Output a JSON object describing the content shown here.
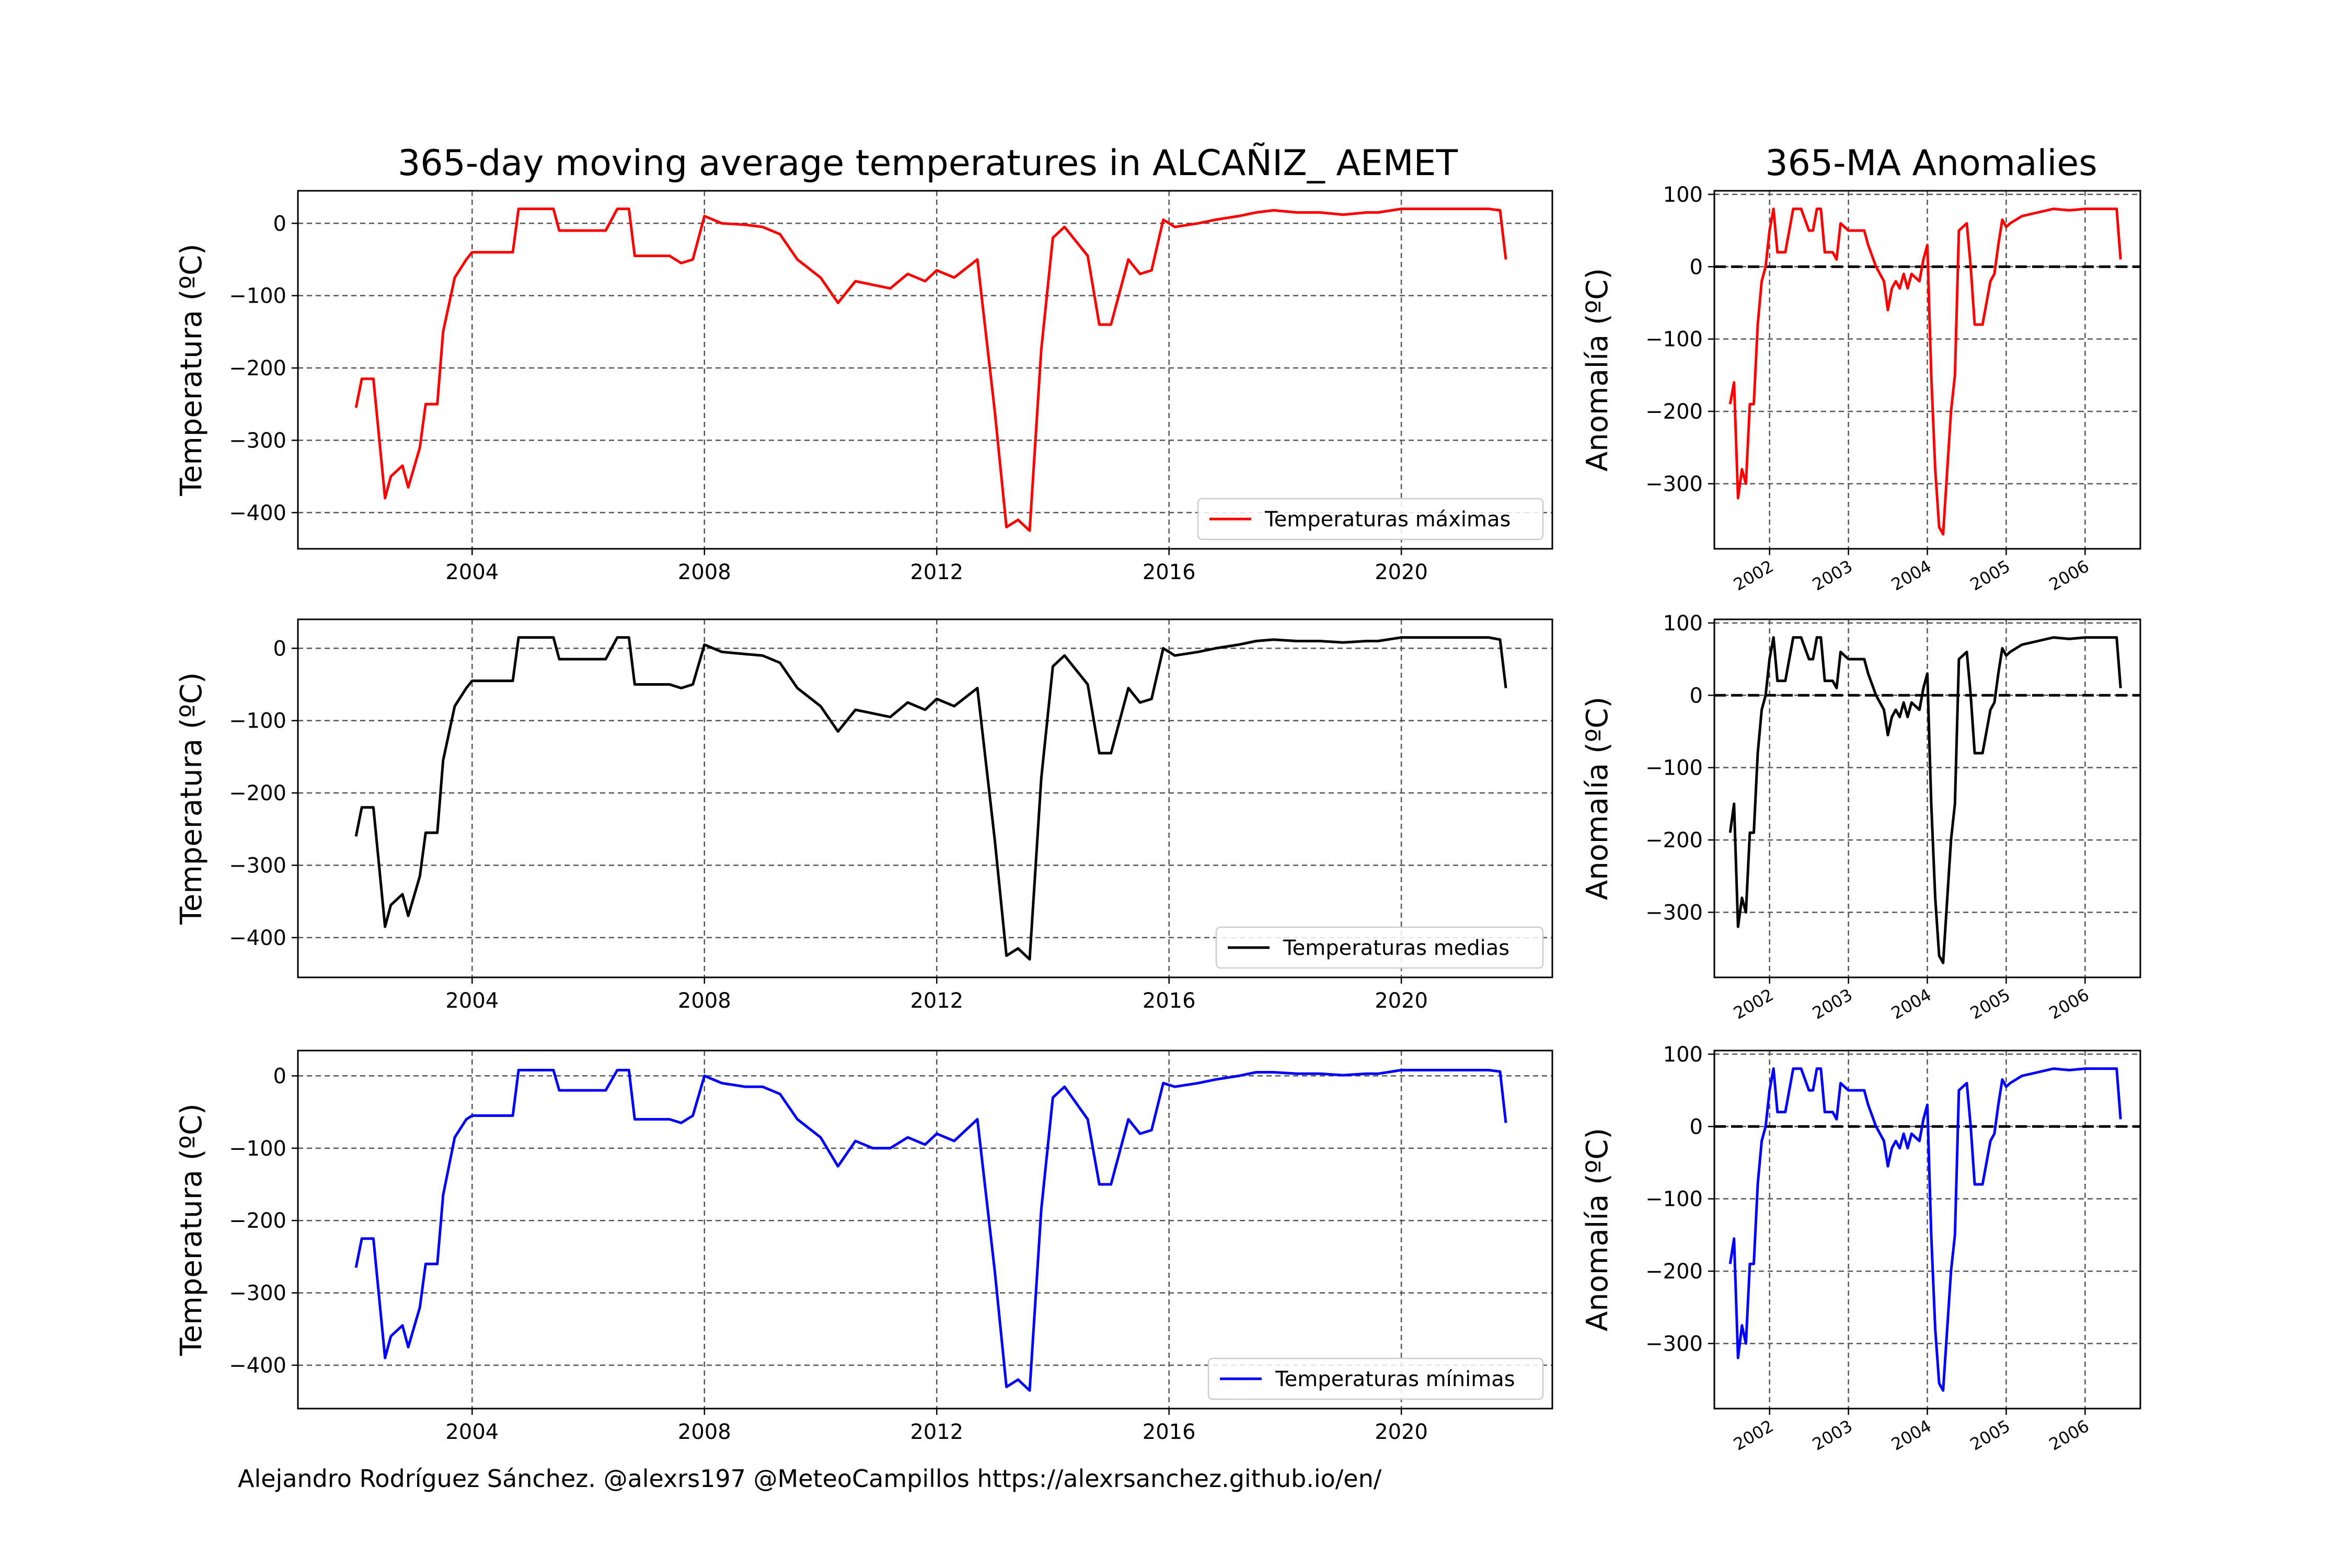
{
  "figure": {
    "title": "365-day moving average temperatures in ALCAÑIZ_ AEMET",
    "anomaly_title": "365-MA Anomalies",
    "footer": "Alejandro Rodríguez Sánchez. @alexrs197 @MeteoCampillos   https://alexrsanchez.github.io/en/"
  },
  "colors": {
    "max": "#ff0000",
    "mean": "#000000",
    "min": "#0000ff",
    "grid": "#555555"
  },
  "chart_data": [
    {
      "type": "line",
      "ylabel": "Temperatura (ºC)",
      "xlim": [
        2001.0,
        2022.6
      ],
      "ylim": [
        -450,
        45
      ],
      "xticks": [
        "2004",
        "2008",
        "2012",
        "2016",
        "2020"
      ],
      "yticks": [
        "0",
        "−100",
        "−200",
        "−300",
        "−400"
      ],
      "legend": "lower right",
      "grid": true,
      "series": [
        {
          "name": "Temperaturas máximas",
          "color": "#ff0000",
          "x": [
            2002.0,
            2002.1,
            2002.3,
            2002.5,
            2002.6,
            2002.8,
            2002.9,
            2003.1,
            2003.2,
            2003.4,
            2003.5,
            2003.7,
            2003.9,
            2004.0,
            2004.7,
            2004.8,
            2005.4,
            2005.5,
            2006.3,
            2006.5,
            2006.7,
            2006.8,
            2007.4,
            2007.6,
            2007.8,
            2008.0,
            2008.3,
            2008.7,
            2009.0,
            2009.3,
            2009.6,
            2010.0,
            2010.3,
            2010.6,
            2010.9,
            2011.2,
            2011.5,
            2011.8,
            2012.0,
            2012.3,
            2012.7,
            2013.0,
            2013.2,
            2013.4,
            2013.6,
            2013.8,
            2014.0,
            2014.2,
            2014.6,
            2014.8,
            2015.0,
            2015.3,
            2015.5,
            2015.7,
            2015.9,
            2016.1,
            2016.5,
            2016.8,
            2017.2,
            2017.5,
            2017.8,
            2018.2,
            2018.6,
            2019.0,
            2019.4,
            2019.6,
            2020.0,
            2020.5,
            2020.7,
            2021.0,
            2021.5,
            2021.7,
            2021.8
          ],
          "y": [
            -255,
            -215,
            -215,
            -380,
            -350,
            -335,
            -365,
            -310,
            -250,
            -250,
            -150,
            -75,
            -50,
            -40,
            -40,
            20,
            20,
            -10,
            -10,
            20,
            20,
            -45,
            -45,
            -55,
            -50,
            10,
            0,
            -2,
            -5,
            -15,
            -50,
            -75,
            -110,
            -80,
            -85,
            -90,
            -70,
            -80,
            -65,
            -75,
            -50,
            -260,
            -420,
            -410,
            -425,
            -175,
            -20,
            -5,
            -45,
            -140,
            -140,
            -50,
            -70,
            -65,
            5,
            -5,
            0,
            5,
            10,
            15,
            18,
            15,
            15,
            12,
            15,
            15,
            20,
            20,
            20,
            20,
            20,
            18,
            -50
          ]
        }
      ]
    },
    {
      "type": "line",
      "ylabel": "Temperatura (ºC)",
      "xlim": [
        2001.0,
        2022.6
      ],
      "ylim": [
        -455,
        40
      ],
      "xticks": [
        "2004",
        "2008",
        "2012",
        "2016",
        "2020"
      ],
      "yticks": [
        "0",
        "−100",
        "−200",
        "−300",
        "−400"
      ],
      "legend": "lower right",
      "grid": true,
      "series": [
        {
          "name": "Temperaturas medias",
          "color": "#000000",
          "x": [
            2002.0,
            2002.1,
            2002.3,
            2002.5,
            2002.6,
            2002.8,
            2002.9,
            2003.1,
            2003.2,
            2003.4,
            2003.5,
            2003.7,
            2003.9,
            2004.0,
            2004.7,
            2004.8,
            2005.4,
            2005.5,
            2006.3,
            2006.5,
            2006.7,
            2006.8,
            2007.4,
            2007.6,
            2007.8,
            2008.0,
            2008.3,
            2008.7,
            2009.0,
            2009.3,
            2009.6,
            2010.0,
            2010.3,
            2010.6,
            2010.9,
            2011.2,
            2011.5,
            2011.8,
            2012.0,
            2012.3,
            2012.7,
            2013.0,
            2013.2,
            2013.4,
            2013.6,
            2013.8,
            2014.0,
            2014.2,
            2014.6,
            2014.8,
            2015.0,
            2015.3,
            2015.5,
            2015.7,
            2015.9,
            2016.1,
            2016.5,
            2016.8,
            2017.2,
            2017.5,
            2017.8,
            2018.2,
            2018.6,
            2019.0,
            2019.4,
            2019.6,
            2020.0,
            2020.5,
            2020.7,
            2021.0,
            2021.5,
            2021.7,
            2021.8
          ],
          "y": [
            -260,
            -220,
            -220,
            -385,
            -355,
            -340,
            -370,
            -315,
            -255,
            -255,
            -155,
            -80,
            -55,
            -45,
            -45,
            15,
            15,
            -15,
            -15,
            15,
            15,
            -50,
            -50,
            -55,
            -50,
            5,
            -5,
            -8,
            -10,
            -20,
            -55,
            -80,
            -115,
            -85,
            -90,
            -95,
            -75,
            -85,
            -70,
            -80,
            -55,
            -265,
            -425,
            -415,
            -430,
            -180,
            -25,
            -10,
            -50,
            -145,
            -145,
            -55,
            -75,
            -70,
            0,
            -10,
            -5,
            0,
            5,
            10,
            12,
            10,
            10,
            8,
            10,
            10,
            15,
            15,
            15,
            15,
            15,
            12,
            -55
          ]
        }
      ]
    },
    {
      "type": "line",
      "ylabel": "Temperatura (ºC)",
      "xlim": [
        2001.0,
        2022.6
      ],
      "ylim": [
        -460,
        35
      ],
      "xticks": [
        "2004",
        "2008",
        "2012",
        "2016",
        "2020"
      ],
      "yticks": [
        "0",
        "−100",
        "−200",
        "−300",
        "−400"
      ],
      "legend": "lower right",
      "grid": true,
      "series": [
        {
          "name": "Temperaturas mínimas",
          "color": "#0000ff",
          "x": [
            2002.0,
            2002.1,
            2002.3,
            2002.5,
            2002.6,
            2002.8,
            2002.9,
            2003.1,
            2003.2,
            2003.4,
            2003.5,
            2003.7,
            2003.9,
            2004.0,
            2004.7,
            2004.8,
            2005.4,
            2005.5,
            2006.3,
            2006.5,
            2006.7,
            2006.8,
            2007.4,
            2007.6,
            2007.8,
            2008.0,
            2008.3,
            2008.7,
            2009.0,
            2009.3,
            2009.6,
            2010.0,
            2010.3,
            2010.6,
            2010.9,
            2011.2,
            2011.5,
            2011.8,
            2012.0,
            2012.3,
            2012.7,
            2013.0,
            2013.2,
            2013.4,
            2013.6,
            2013.8,
            2014.0,
            2014.2,
            2014.6,
            2014.8,
            2015.0,
            2015.3,
            2015.5,
            2015.7,
            2015.9,
            2016.1,
            2016.5,
            2016.8,
            2017.2,
            2017.5,
            2017.8,
            2018.2,
            2018.6,
            2019.0,
            2019.4,
            2019.6,
            2020.0,
            2020.5,
            2020.7,
            2021.0,
            2021.5,
            2021.7,
            2021.8
          ],
          "y": [
            -265,
            -225,
            -225,
            -390,
            -360,
            -345,
            -375,
            -320,
            -260,
            -260,
            -165,
            -85,
            -60,
            -55,
            -55,
            8,
            8,
            -20,
            -20,
            8,
            8,
            -60,
            -60,
            -65,
            -55,
            0,
            -10,
            -15,
            -15,
            -25,
            -60,
            -85,
            -125,
            -90,
            -100,
            -100,
            -85,
            -95,
            -80,
            -90,
            -60,
            -270,
            -430,
            -420,
            -435,
            -185,
            -30,
            -15,
            -60,
            -150,
            -150,
            -60,
            -80,
            -75,
            -10,
            -15,
            -10,
            -5,
            0,
            5,
            5,
            3,
            3,
            1,
            3,
            3,
            8,
            8,
            8,
            8,
            8,
            6,
            -65
          ]
        }
      ]
    },
    {
      "type": "line",
      "title": "365-MA Anomalies",
      "ylabel": "Anomalía (ºC)",
      "xlim": [
        2001.3,
        2006.7
      ],
      "ylim": [
        -390,
        105
      ],
      "xticks": [
        "2002",
        "2003",
        "2004",
        "2005",
        "2006"
      ],
      "yticks": [
        "100",
        "0",
        "−100",
        "−200",
        "−300"
      ],
      "zero_line": true,
      "grid": true,
      "series": [
        {
          "name": "",
          "color": "#ff0000",
          "x": [
            2001.5,
            2001.55,
            2001.6,
            2001.65,
            2001.7,
            2001.75,
            2001.8,
            2001.85,
            2001.9,
            2001.95,
            2002.0,
            2002.05,
            2002.1,
            2002.2,
            2002.3,
            2002.4,
            2002.5,
            2002.55,
            2002.6,
            2002.65,
            2002.7,
            2002.8,
            2002.85,
            2002.9,
            2003.0,
            2003.05,
            2003.2,
            2003.25,
            2003.35,
            2003.45,
            2003.5,
            2003.55,
            2003.6,
            2003.65,
            2003.7,
            2003.75,
            2003.8,
            2003.9,
            2003.95,
            2004.0,
            2004.05,
            2004.1,
            2004.15,
            2004.2,
            2004.3,
            2004.35,
            2004.4,
            2004.5,
            2004.55,
            2004.6,
            2004.7,
            2004.75,
            2004.8,
            2004.85,
            2004.9,
            2004.95,
            2005.0,
            2005.05,
            2005.2,
            2005.4,
            2005.6,
            2005.8,
            2006.0,
            2006.2,
            2006.4,
            2006.45
          ],
          "y": [
            -190,
            -160,
            -320,
            -280,
            -300,
            -190,
            -190,
            -80,
            -20,
            0,
            50,
            80,
            20,
            20,
            80,
            80,
            50,
            50,
            80,
            80,
            20,
            20,
            10,
            60,
            50,
            50,
            50,
            30,
            0,
            -20,
            -60,
            -30,
            -20,
            -30,
            -10,
            -30,
            -10,
            -20,
            10,
            30,
            -150,
            -280,
            -360,
            -370,
            -200,
            -150,
            50,
            60,
            0,
            -80,
            -80,
            -50,
            -20,
            -10,
            30,
            65,
            55,
            60,
            70,
            75,
            80,
            78,
            80,
            80,
            80,
            10
          ]
        }
      ]
    },
    {
      "type": "line",
      "ylabel": "Anomalía (ºC)",
      "xlim": [
        2001.3,
        2006.7
      ],
      "ylim": [
        -390,
        105
      ],
      "xticks": [
        "2002",
        "2003",
        "2004",
        "2005",
        "2006"
      ],
      "yticks": [
        "100",
        "0",
        "−100",
        "−200",
        "−300"
      ],
      "zero_line": true,
      "grid": true,
      "series": [
        {
          "name": "",
          "color": "#000000",
          "x": [
            2001.5,
            2001.55,
            2001.6,
            2001.65,
            2001.7,
            2001.75,
            2001.8,
            2001.85,
            2001.9,
            2001.95,
            2002.0,
            2002.05,
            2002.1,
            2002.2,
            2002.3,
            2002.4,
            2002.5,
            2002.55,
            2002.6,
            2002.65,
            2002.7,
            2002.8,
            2002.85,
            2002.9,
            2003.0,
            2003.05,
            2003.2,
            2003.25,
            2003.35,
            2003.45,
            2003.5,
            2003.55,
            2003.6,
            2003.65,
            2003.7,
            2003.75,
            2003.8,
            2003.9,
            2003.95,
            2004.0,
            2004.05,
            2004.1,
            2004.15,
            2004.2,
            2004.3,
            2004.35,
            2004.4,
            2004.5,
            2004.55,
            2004.6,
            2004.7,
            2004.75,
            2004.8,
            2004.85,
            2004.9,
            2004.95,
            2005.0,
            2005.05,
            2005.2,
            2005.4,
            2005.6,
            2005.8,
            2006.0,
            2006.2,
            2006.4,
            2006.45
          ],
          "y": [
            -190,
            -150,
            -320,
            -280,
            -300,
            -190,
            -190,
            -80,
            -20,
            0,
            50,
            80,
            20,
            20,
            80,
            80,
            50,
            50,
            80,
            80,
            20,
            20,
            10,
            60,
            50,
            50,
            50,
            30,
            0,
            -20,
            -55,
            -30,
            -20,
            -30,
            -10,
            -30,
            -10,
            -20,
            10,
            30,
            -150,
            -280,
            -360,
            -370,
            -200,
            -150,
            50,
            60,
            0,
            -80,
            -80,
            -50,
            -20,
            -10,
            30,
            65,
            55,
            60,
            70,
            75,
            80,
            78,
            80,
            80,
            80,
            10
          ]
        }
      ]
    },
    {
      "type": "line",
      "ylabel": "Anomalía (ºC)",
      "xlim": [
        2001.3,
        2006.7
      ],
      "ylim": [
        -390,
        105
      ],
      "xticks": [
        "2002",
        "2003",
        "2004",
        "2005",
        "2006"
      ],
      "yticks": [
        "100",
        "0",
        "−100",
        "−200",
        "−300"
      ],
      "zero_line": true,
      "grid": true,
      "series": [
        {
          "name": "",
          "color": "#0000ff",
          "x": [
            2001.5,
            2001.55,
            2001.6,
            2001.65,
            2001.7,
            2001.75,
            2001.8,
            2001.85,
            2001.9,
            2001.95,
            2002.0,
            2002.05,
            2002.1,
            2002.2,
            2002.3,
            2002.4,
            2002.5,
            2002.55,
            2002.6,
            2002.65,
            2002.7,
            2002.8,
            2002.85,
            2002.9,
            2003.0,
            2003.05,
            2003.2,
            2003.25,
            2003.35,
            2003.45,
            2003.5,
            2003.55,
            2003.6,
            2003.65,
            2003.7,
            2003.75,
            2003.8,
            2003.9,
            2003.95,
            2004.0,
            2004.05,
            2004.1,
            2004.15,
            2004.2,
            2004.3,
            2004.35,
            2004.4,
            2004.5,
            2004.55,
            2004.6,
            2004.7,
            2004.75,
            2004.8,
            2004.85,
            2004.9,
            2004.95,
            2005.0,
            2005.05,
            2005.2,
            2005.4,
            2005.6,
            2005.8,
            2006.0,
            2006.2,
            2006.4,
            2006.45
          ],
          "y": [
            -190,
            -155,
            -320,
            -275,
            -300,
            -190,
            -190,
            -80,
            -20,
            0,
            50,
            80,
            20,
            20,
            80,
            80,
            50,
            50,
            80,
            80,
            20,
            20,
            10,
            60,
            50,
            50,
            50,
            30,
            0,
            -20,
            -55,
            -30,
            -20,
            -30,
            -10,
            -30,
            -10,
            -20,
            10,
            30,
            -150,
            -280,
            -355,
            -365,
            -200,
            -150,
            50,
            60,
            0,
            -80,
            -80,
            -50,
            -20,
            -10,
            30,
            65,
            55,
            60,
            70,
            75,
            80,
            78,
            80,
            80,
            80,
            10
          ]
        }
      ]
    }
  ]
}
